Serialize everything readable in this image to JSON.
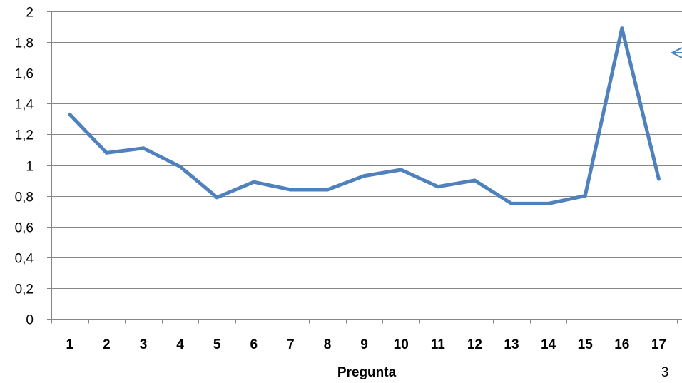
{
  "chart_data": {
    "type": "line",
    "title": "",
    "xlabel": "Pregunta",
    "ylabel": "",
    "categories": [
      "1",
      "2",
      "3",
      "4",
      "5",
      "6",
      "7",
      "8",
      "9",
      "10",
      "11",
      "12",
      "13",
      "14",
      "15",
      "16",
      "17"
    ],
    "series": [
      {
        "values": [
          1.33,
          1.08,
          1.11,
          0.99,
          0.79,
          0.89,
          0.84,
          0.84,
          0.93,
          0.97,
          0.86,
          0.9,
          0.75,
          0.75,
          0.8,
          1.89,
          0.91
        ],
        "color": "#4f81bd"
      }
    ],
    "ylim": [
      0,
      2
    ],
    "yticks": [
      "0",
      "0,2",
      "0,4",
      "0,6",
      "0,8",
      "1",
      "1,2",
      "1,4",
      "1,6",
      "1,8",
      "2"
    ],
    "ytick_values": [
      0,
      0.2,
      0.4,
      0.6,
      0.8,
      1.0,
      1.2,
      1.4,
      1.6,
      1.8,
      2.0
    ],
    "grid": true,
    "gridline_color": "#868686",
    "axis_color": "#868686"
  },
  "page_number": "3",
  "annotation_icon": "arrow-left-icon"
}
